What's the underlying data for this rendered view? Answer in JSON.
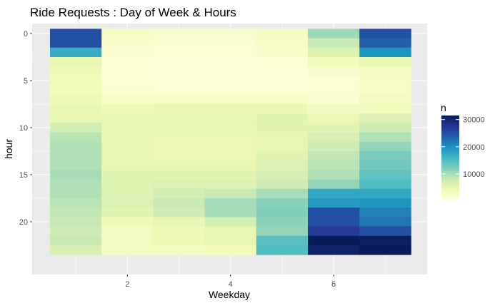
{
  "chart_data": {
    "type": "heatmap",
    "title": "Ride Requests : Day of Week & Hours",
    "xlabel": "Weekday",
    "ylabel": "hour",
    "x": [
      1,
      2,
      3,
      4,
      5,
      6,
      7
    ],
    "y": [
      0,
      1,
      2,
      3,
      4,
      5,
      6,
      7,
      8,
      9,
      10,
      11,
      12,
      13,
      14,
      15,
      16,
      17,
      18,
      19,
      20,
      21,
      22,
      23
    ],
    "x_ticks": [
      2,
      4,
      6
    ],
    "y_ticks": [
      0,
      5,
      10,
      15,
      20
    ],
    "y_reversed": true,
    "grid": true,
    "legend": {
      "title": "n",
      "placement": "right",
      "ticks": [
        10000,
        20000,
        30000
      ],
      "range": [
        500,
        31500
      ],
      "colorscale": [
        "#ffffd9",
        "#edf8b1",
        "#c7e9b4",
        "#7fcdbb",
        "#41b6c4",
        "#1d91c0",
        "#225ea8",
        "#253494",
        "#081d58"
      ]
    },
    "values_by_weekday": [
      [
        25000,
        25000,
        17000,
        5000,
        4000,
        3500,
        3500,
        4000,
        5000,
        5000,
        7000,
        9000,
        9500,
        9500,
        9500,
        10000,
        9500,
        9500,
        9000,
        8500,
        8000,
        7500,
        8000,
        6500
      ],
      [
        2500,
        2000,
        1500,
        1200,
        1200,
        1200,
        1500,
        2500,
        4000,
        5000,
        5000,
        5000,
        5000,
        5000,
        5000,
        5500,
        5500,
        6000,
        6000,
        5500,
        4000,
        3000,
        3000,
        3000
      ],
      [
        2000,
        1500,
        1200,
        800,
        800,
        800,
        1200,
        2500,
        4500,
        5000,
        5000,
        4500,
        4500,
        4500,
        5000,
        5500,
        6000,
        7000,
        8000,
        7500,
        5000,
        4000,
        4000,
        3000
      ],
      [
        2000,
        1500,
        1200,
        800,
        800,
        800,
        1200,
        2500,
        4500,
        5000,
        5000,
        4500,
        4500,
        4500,
        5000,
        5500,
        6000,
        8000,
        10000,
        10000,
        7000,
        5000,
        5000,
        3500
      ],
      [
        3000,
        2500,
        2000,
        1200,
        800,
        800,
        1200,
        2500,
        4500,
        5500,
        5500,
        5000,
        5000,
        5500,
        6000,
        6500,
        7500,
        10000,
        11500,
        12000,
        11500,
        11000,
        14500,
        15000
      ],
      [
        10500,
        8000,
        6000,
        3500,
        2000,
        1200,
        1200,
        1500,
        3000,
        4500,
        5500,
        6500,
        7500,
        8500,
        9000,
        9500,
        11000,
        17500,
        19000,
        25000,
        25000,
        27000,
        31500,
        30500
      ],
      [
        25000,
        23500,
        19500,
        5000,
        3000,
        2500,
        2500,
        3000,
        3500,
        6000,
        7500,
        9500,
        11000,
        12500,
        13000,
        14000,
        15000,
        17500,
        19500,
        21000,
        22000,
        25000,
        31000,
        31500
      ]
    ]
  }
}
